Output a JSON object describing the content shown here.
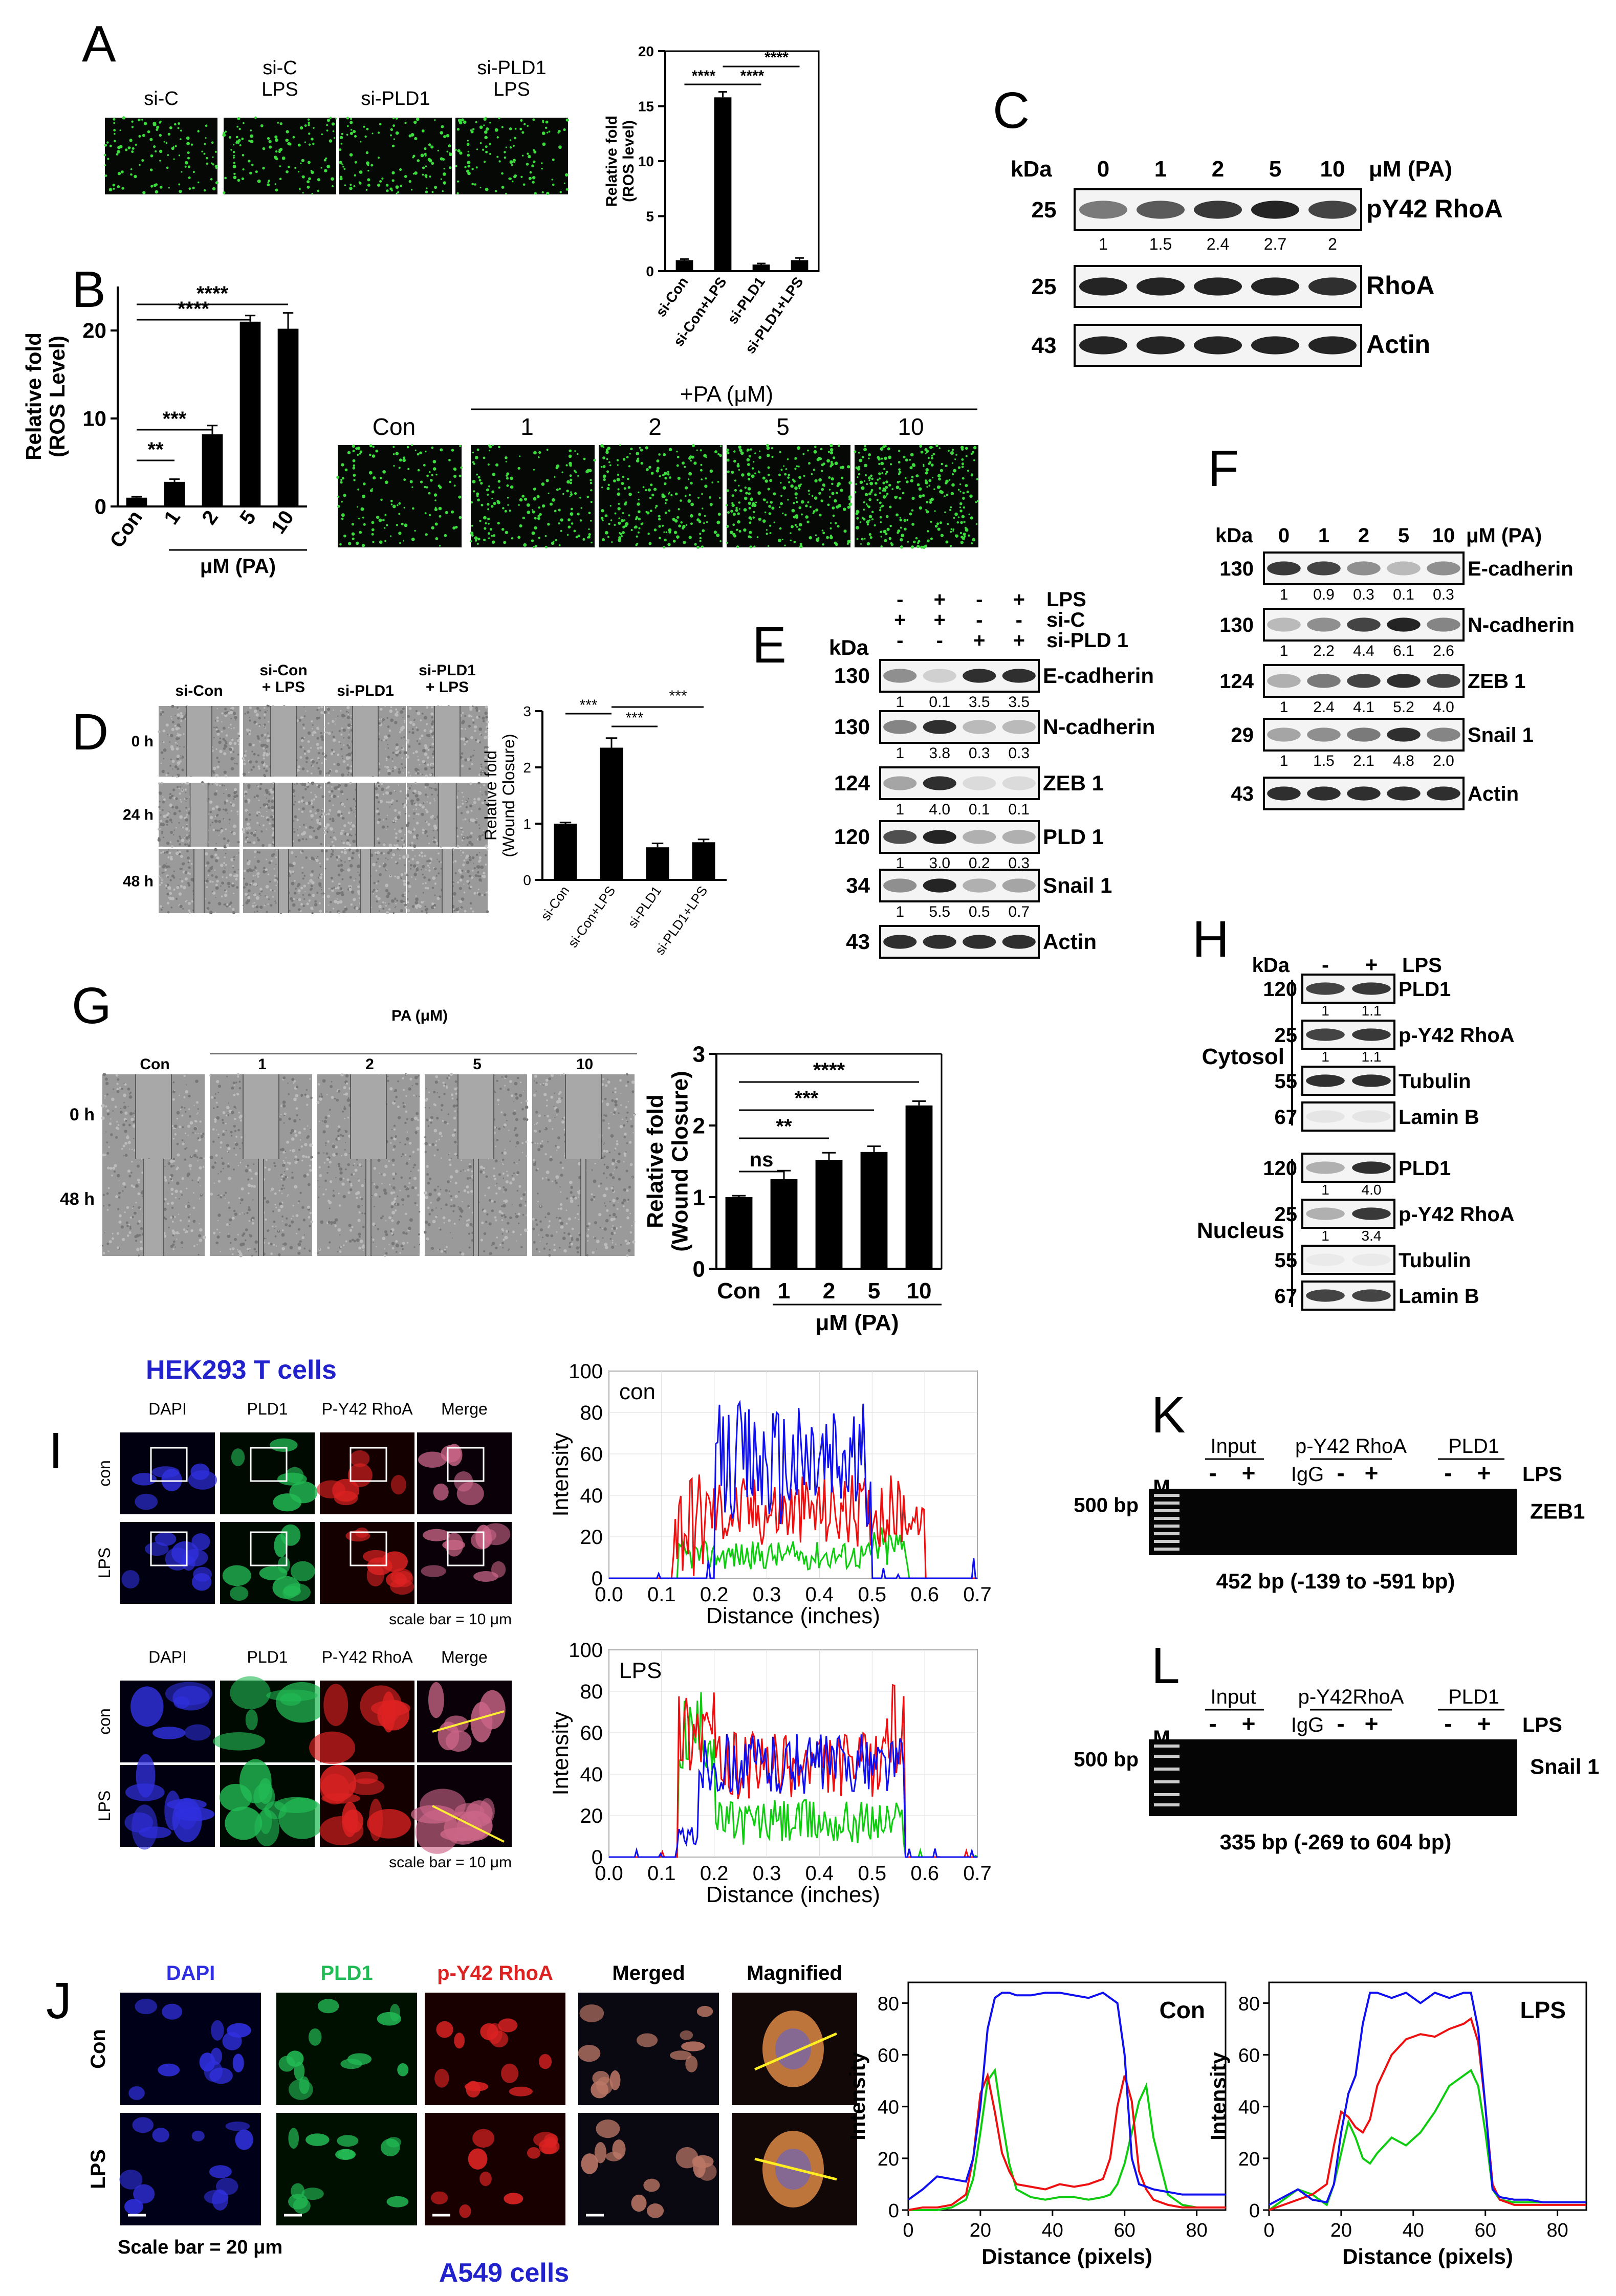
{
  "panels": {
    "A": {
      "label": "A",
      "image_labels": [
        "si-C",
        "si-C\nLPS",
        "si-PLD1",
        "si-PLD1\nLPS"
      ],
      "chart_data": {
        "type": "bar",
        "categories": [
          "si-Con",
          "si-Con+LPS",
          "si-PLD1",
          "si-PLD1+LPS"
        ],
        "values": [
          1,
          15.8,
          0.6,
          1.0
        ],
        "errors": [
          0.1,
          0.5,
          0.1,
          0.2
        ],
        "ylabel": "Relative fold\n(ROS level)",
        "ylim": [
          0,
          20
        ],
        "yticks": [
          0,
          5,
          10,
          15,
          20
        ],
        "sig": [
          "****",
          "****",
          "****"
        ]
      }
    },
    "B": {
      "label": "B",
      "chart_data": {
        "type": "bar",
        "categories": [
          "Con",
          "1",
          "2",
          "5",
          "10"
        ],
        "values": [
          1,
          2.8,
          8.2,
          21,
          20.2
        ],
        "errors": [
          0.1,
          0.3,
          1.0,
          0.7,
          1.8
        ],
        "ylabel": "Relative fold\n(ROS Level)",
        "xlabel": "μM (PA)",
        "ylim": [
          0,
          25
        ],
        "yticks": [
          0,
          10,
          20
        ],
        "sig": [
          "**",
          "***",
          "****",
          "****"
        ]
      },
      "image_header": "+PA (μM)",
      "image_labels": [
        "Con",
        "1",
        "2",
        "5",
        "10"
      ]
    },
    "C": {
      "label": "C",
      "kda_label": "kDa",
      "unit_label": "μM (PA)",
      "lanes": [
        "0",
        "1",
        "2",
        "5",
        "10"
      ],
      "rows": [
        {
          "kda": "25",
          "name": "pY42 RhoA",
          "quant": [
            "1",
            "1.5",
            "2.4",
            "2.7",
            "2"
          ],
          "bands": [
            0.55,
            0.7,
            0.85,
            0.95,
            0.8
          ]
        },
        {
          "kda": "25",
          "name": "RhoA",
          "quant": [],
          "bands": [
            0.95,
            0.95,
            0.95,
            0.95,
            0.9
          ]
        },
        {
          "kda": "43",
          "name": "Actin",
          "quant": [],
          "bands": [
            0.95,
            0.95,
            0.95,
            0.95,
            0.95
          ]
        }
      ]
    },
    "D": {
      "label": "D",
      "col_labels": [
        "si-Con",
        "si-Con\n+ LPS",
        "si-PLD1",
        "si-PLD1\n+ LPS"
      ],
      "row_labels": [
        "0 h",
        "24 h",
        "48 h"
      ],
      "chart_data": {
        "type": "bar",
        "categories": [
          "si-Con",
          "si-Con+LPS",
          "si-PLD1",
          "si-PLD1+LPS"
        ],
        "values": [
          1,
          2.35,
          0.58,
          0.67
        ],
        "errors": [
          0.02,
          0.17,
          0.07,
          0.05
        ],
        "ylabel": "Relative fold\n(Wound Closure)",
        "ylim": [
          0,
          3
        ],
        "yticks": [
          0,
          1,
          2,
          3
        ],
        "sig": [
          "***",
          "***",
          "***"
        ]
      }
    },
    "E": {
      "label": "E",
      "kda_label": "kDa",
      "treatments": [
        {
          "name": "LPS",
          "signs": [
            "-",
            "+",
            "-",
            "+"
          ]
        },
        {
          "name": "si-C",
          "signs": [
            "+",
            "+",
            "-",
            "-"
          ]
        },
        {
          "name": "si-PLD 1",
          "signs": [
            "-",
            "-",
            "+",
            "+"
          ]
        }
      ],
      "rows": [
        {
          "kda": "130",
          "name": "E-cadherin",
          "quant": [
            "1",
            "0.1",
            "3.5",
            "3.5"
          ],
          "bands": [
            0.45,
            0.15,
            0.9,
            0.9
          ]
        },
        {
          "kda": "130",
          "name": "N-cadherin",
          "quant": [
            "1",
            "3.8",
            "0.3",
            "0.3"
          ],
          "bands": [
            0.5,
            0.9,
            0.25,
            0.25
          ]
        },
        {
          "kda": "124",
          "name": "ZEB 1",
          "quant": [
            "1",
            "4.0",
            "0.1",
            "0.1"
          ],
          "bands": [
            0.35,
            0.9,
            0.1,
            0.1
          ]
        },
        {
          "kda": "120",
          "name": "PLD 1",
          "quant": [
            "1",
            "3.0",
            "0.2",
            "0.3"
          ],
          "bands": [
            0.75,
            0.95,
            0.3,
            0.3
          ]
        },
        {
          "kda": "34",
          "name": "Snail 1",
          "quant": [
            "1",
            "5.5",
            "0.5",
            "0.7"
          ],
          "bands": [
            0.45,
            0.95,
            0.3,
            0.35
          ]
        },
        {
          "kda": "43",
          "name": "Actin",
          "quant": [],
          "bands": [
            0.9,
            0.9,
            0.9,
            0.9
          ]
        }
      ]
    },
    "F": {
      "label": "F",
      "kda_label": "kDa",
      "unit_label": "μM (PA)",
      "lanes": [
        "0",
        "1",
        "2",
        "5",
        "10"
      ],
      "rows": [
        {
          "kda": "130",
          "name": "E-cadherin",
          "quant": [
            "1",
            "0.9",
            "0.3",
            "0.1",
            "0.3"
          ],
          "bands": [
            0.85,
            0.8,
            0.45,
            0.25,
            0.45
          ]
        },
        {
          "kda": "130",
          "name": "N-cadherin",
          "quant": [
            "1",
            "2.2",
            "4.4",
            "6.1",
            "2.6"
          ],
          "bands": [
            0.25,
            0.45,
            0.8,
            0.95,
            0.5
          ]
        },
        {
          "kda": "124",
          "name": "ZEB 1",
          "quant": [
            "1",
            "2.4",
            "4.1",
            "5.2",
            "4.0"
          ],
          "bands": [
            0.3,
            0.55,
            0.8,
            0.9,
            0.8
          ]
        },
        {
          "kda": "29",
          "name": "Snail 1",
          "quant": [
            "1",
            "1.5",
            "2.1",
            "4.8",
            "2.0"
          ],
          "bands": [
            0.35,
            0.45,
            0.55,
            0.9,
            0.5
          ]
        },
        {
          "kda": "43",
          "name": "Actin",
          "quant": [],
          "bands": [
            0.9,
            0.9,
            0.9,
            0.9,
            0.9
          ]
        }
      ]
    },
    "G": {
      "label": "G",
      "header": "PA (μM)",
      "col_labels": [
        "Con",
        "1",
        "2",
        "5",
        "10"
      ],
      "row_labels": [
        "0 h",
        "48 h"
      ],
      "chart_data": {
        "type": "bar",
        "categories": [
          "Con",
          "1",
          "2",
          "5",
          "10"
        ],
        "values": [
          1,
          1.25,
          1.52,
          1.63,
          2.28
        ],
        "errors": [
          0.02,
          0.12,
          0.1,
          0.08,
          0.06
        ],
        "ylabel": "Relative fold\n(Wound Closure)",
        "xlabel": "μM (PA)",
        "ylim": [
          0,
          3
        ],
        "yticks": [
          0,
          1,
          2,
          3
        ],
        "sig": [
          "ns",
          "**",
          "***",
          "****"
        ]
      }
    },
    "H": {
      "label": "H",
      "kda_label": "kDa",
      "lps_label": "LPS",
      "signs": [
        "-",
        "+"
      ],
      "fractions": [
        "Cytosol",
        "Nucleus"
      ],
      "rows": [
        {
          "kda": "120",
          "name": "PLD1",
          "quant": [
            "1",
            "1.1"
          ],
          "bands": [
            0.8,
            0.85
          ]
        },
        {
          "kda": "25",
          "name": "p-Y42 RhoA",
          "quant": [
            "1",
            "1.1"
          ],
          "bands": [
            0.8,
            0.85
          ]
        },
        {
          "kda": "55",
          "name": "Tubulin",
          "quant": [],
          "bands": [
            0.9,
            0.9
          ]
        },
        {
          "kda": "67",
          "name": "Lamin B",
          "quant": [],
          "bands": [
            0.05,
            0.05
          ]
        },
        {
          "kda": "120",
          "name": "PLD1",
          "quant": [
            "1",
            "4.0"
          ],
          "bands": [
            0.3,
            0.9
          ]
        },
        {
          "kda": "25",
          "name": "p-Y42 RhoA",
          "quant": [
            "1",
            "3.4"
          ],
          "bands": [
            0.3,
            0.85
          ]
        },
        {
          "kda": "55",
          "name": "Tubulin",
          "quant": [],
          "bands": [
            0.03,
            0.03
          ]
        },
        {
          "kda": "67",
          "name": "Lamin B",
          "quant": [],
          "bands": [
            0.8,
            0.8
          ]
        }
      ]
    },
    "I": {
      "label": "I",
      "cell_line": "HEK293 T cells",
      "col_labels": [
        "DAPI",
        "PLD1",
        "P-Y42 RhoA",
        "Merge"
      ],
      "row_labels": [
        "con",
        "LPS"
      ],
      "scale_bar": "scale bar = 10 μm",
      "charts": [
        {
          "title": "con",
          "xlabel": "Distance (inches)",
          "ylabel": "Intensity",
          "xlim": [
            0,
            0.7
          ],
          "ylim": [
            0,
            100
          ],
          "xticks": [
            "0.0",
            "0.1",
            "0.2",
            "0.3",
            "0.4",
            "0.5",
            "0.6",
            "0.7"
          ],
          "yticks": [
            "0",
            "20",
            "40",
            "60",
            "80",
            "100"
          ]
        },
        {
          "title": "LPS",
          "xlabel": "Distance (inches)",
          "ylabel": "Intensity",
          "xlim": [
            0,
            0.7
          ],
          "ylim": [
            0,
            100
          ],
          "xticks": [
            "0.0",
            "0.1",
            "0.2",
            "0.3",
            "0.4",
            "0.5",
            "0.6",
            "0.7"
          ],
          "yticks": [
            "0",
            "20",
            "40",
            "60",
            "80",
            "100"
          ]
        }
      ]
    },
    "J": {
      "label": "J",
      "col_labels": [
        "DAPI",
        "PLD1",
        "p-Y42 RhoA",
        "Merged",
        "Magnified"
      ],
      "row_labels": [
        "Con",
        "LPS"
      ],
      "scale_bar": "Scale bar = 20 μm",
      "cell_line": "A549 cells",
      "charts": [
        {
          "title": "Con",
          "xlabel": "Distance (pixels)",
          "ylabel": "Intensity",
          "xlim": [
            0,
            88
          ],
          "ylim": [
            0,
            88
          ],
          "xticks": [
            "0",
            "20",
            "40",
            "60",
            "80"
          ],
          "yticks": [
            "0",
            "20",
            "40",
            "60",
            "80"
          ],
          "x": [
            0,
            4,
            8,
            12,
            16,
            18,
            20,
            22,
            24,
            26,
            28,
            30,
            34,
            38,
            42,
            46,
            50,
            54,
            56,
            58,
            60,
            62,
            64,
            66,
            68,
            72,
            76,
            80,
            84,
            88
          ],
          "blue": [
            4,
            8,
            13,
            12,
            11,
            20,
            40,
            70,
            82,
            84,
            84,
            83,
            83,
            84,
            84,
            83,
            82,
            84,
            82,
            80,
            60,
            20,
            10,
            9,
            8,
            7,
            6,
            6,
            6,
            6
          ],
          "red": [
            0,
            1,
            1,
            2,
            6,
            20,
            45,
            52,
            38,
            22,
            15,
            10,
            9,
            8,
            10,
            9,
            10,
            12,
            20,
            40,
            52,
            42,
            15,
            8,
            4,
            2,
            1,
            1,
            1,
            1
          ],
          "green": [
            0,
            0,
            0,
            1,
            4,
            12,
            30,
            50,
            54,
            35,
            18,
            8,
            5,
            4,
            5,
            5,
            4,
            5,
            6,
            10,
            18,
            30,
            42,
            48,
            28,
            6,
            2,
            1,
            1,
            1
          ]
        },
        {
          "title": "LPS",
          "xlabel": "Distance (pixels)",
          "ylabel": "Intensity",
          "xlim": [
            0,
            88
          ],
          "ylim": [
            0,
            88
          ],
          "xticks": [
            "0",
            "20",
            "40",
            "60",
            "80"
          ],
          "yticks": [
            "0",
            "20",
            "40",
            "60",
            "80"
          ],
          "x": [
            0,
            4,
            8,
            12,
            16,
            18,
            20,
            22,
            24,
            26,
            28,
            30,
            34,
            38,
            42,
            46,
            50,
            54,
            56,
            58,
            60,
            62,
            64,
            68,
            72,
            76,
            80,
            84,
            88
          ],
          "blue": [
            2,
            5,
            8,
            4,
            3,
            10,
            30,
            45,
            52,
            72,
            84,
            84,
            82,
            84,
            80,
            84,
            82,
            84,
            84,
            70,
            40,
            8,
            5,
            4,
            4,
            3,
            3,
            3,
            3
          ],
          "red": [
            0,
            2,
            4,
            6,
            10,
            25,
            38,
            36,
            32,
            30,
            35,
            48,
            60,
            66,
            68,
            67,
            70,
            72,
            74,
            65,
            40,
            10,
            4,
            2,
            2,
            2,
            2,
            2,
            2
          ],
          "green": [
            0,
            4,
            8,
            6,
            2,
            10,
            22,
            34,
            28,
            20,
            18,
            22,
            28,
            25,
            30,
            38,
            48,
            52,
            54,
            48,
            30,
            8,
            4,
            3,
            3,
            3,
            3,
            3,
            3
          ]
        }
      ]
    },
    "K": {
      "label": "K",
      "marker": "M",
      "marker_size": "500 bp",
      "groups": [
        "Input",
        "p-Y42 RhoA",
        "PLD1"
      ],
      "igg_label": "IgG",
      "signs": [
        "-",
        "+",
        "-",
        "+",
        "-",
        "+"
      ],
      "lps_label": "LPS",
      "gene": "ZEB1",
      "caption": "452 bp (-139 to -591 bp)"
    },
    "L": {
      "label": "L",
      "marker": "M",
      "marker_size": "500 bp",
      "groups": [
        "Input",
        "p-Y42RhoA",
        "PLD1"
      ],
      "igg_label": "IgG",
      "signs": [
        "-",
        "+",
        "-",
        "+",
        "-",
        "+"
      ],
      "lps_label": "LPS",
      "gene": "Snail 1",
      "caption": "335 bp (-269 to 604 bp)"
    }
  },
  "colors": {
    "blue": "#1010ee",
    "red": "#ee1010",
    "green": "#10cc10",
    "cell_line_blue": "#2222cc",
    "dapi_blue": "#3030e0",
    "pld1_green": "#22bb55",
    "rhoa_red": "#dd2222"
  }
}
